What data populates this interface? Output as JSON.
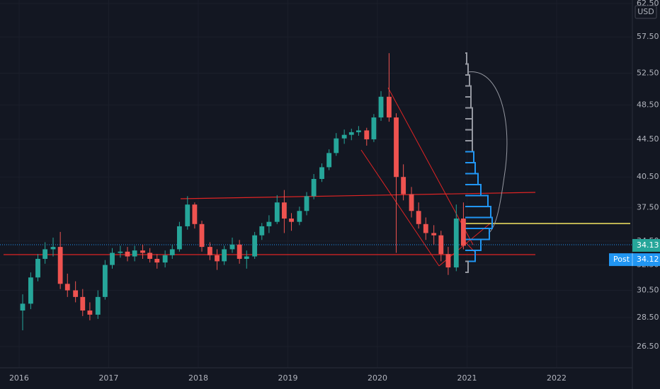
{
  "chart_data": {
    "type": "candlestick",
    "currency": "USD",
    "log_scale": true,
    "grid": true,
    "up_color": "#26a69a",
    "down_color": "#ef5350",
    "xlim": [
      2015.787,
      2022.846
    ],
    "xticks": [
      2016,
      2017,
      2018,
      2019,
      2020,
      2021,
      2022
    ],
    "ylim": [
      25.13,
      63.05
    ],
    "yticks": [
      {
        "value": 26.5,
        "label": "26.50"
      },
      {
        "value": 28.5,
        "label": "28.50"
      },
      {
        "value": 30.5,
        "label": "30.50"
      },
      {
        "value": 32.5,
        "label": "32.50"
      },
      {
        "value": 34.5,
        "label": "34.50"
      },
      {
        "value": 37.5,
        "label": "37.50"
      },
      {
        "value": 40.5,
        "label": "40.50"
      },
      {
        "value": 44.5,
        "label": "44.50"
      },
      {
        "value": 48.5,
        "label": "48.50"
      },
      {
        "value": 52.5,
        "label": "52.50"
      },
      {
        "value": 57.5,
        "label": "57.50"
      },
      {
        "value": 62.5,
        "label": "62.50"
      }
    ],
    "x": [
      2016.04,
      2016.13,
      2016.21,
      2016.29,
      2016.38,
      2016.46,
      2016.54,
      2016.63,
      2016.71,
      2016.79,
      2016.88,
      2016.96,
      2017.04,
      2017.13,
      2017.21,
      2017.29,
      2017.38,
      2017.46,
      2017.54,
      2017.63,
      2017.71,
      2017.79,
      2017.88,
      2017.96,
      2018.04,
      2018.13,
      2018.21,
      2018.29,
      2018.38,
      2018.46,
      2018.54,
      2018.63,
      2018.71,
      2018.79,
      2018.88,
      2018.96,
      2019.04,
      2019.13,
      2019.21,
      2019.29,
      2019.38,
      2019.46,
      2019.54,
      2019.63,
      2019.71,
      2019.79,
      2019.88,
      2019.96,
      2020.04,
      2020.13,
      2020.21,
      2020.29,
      2020.38,
      2020.46,
      2020.54,
      2020.63,
      2020.71,
      2020.79,
      2020.88,
      2020.96
    ],
    "open": [
      29.0,
      29.5,
      31.5,
      33.0,
      33.8,
      34.0,
      31.0,
      30.5,
      30.0,
      29.0,
      28.7,
      30.0,
      32.5,
      33.5,
      33.6,
      33.2,
      33.7,
      33.5,
      33.0,
      32.7,
      33.3,
      33.8,
      35.8,
      37.8,
      36.0,
      34.0,
      33.3,
      32.8,
      33.8,
      34.2,
      33.0,
      33.2,
      35.0,
      35.8,
      36.2,
      38.0,
      36.5,
      36.2,
      37.2,
      38.6,
      40.3,
      41.5,
      43.0,
      44.6,
      45.0,
      45.3,
      45.5,
      44.5,
      47.0,
      49.5,
      47.0,
      40.5,
      38.8,
      37.2,
      36.0,
      35.2,
      35.0,
      33.4,
      32.3,
      36.5
    ],
    "high": [
      30.2,
      31.9,
      33.4,
      34.4,
      34.8,
      35.3,
      31.8,
      31.2,
      30.6,
      29.6,
      30.5,
      32.9,
      33.9,
      34.1,
      34.0,
      34.1,
      34.2,
      33.9,
      33.4,
      33.7,
      34.2,
      36.2,
      38.6,
      38.0,
      36.3,
      34.4,
      33.8,
      34.1,
      34.8,
      34.6,
      33.7,
      35.3,
      36.1,
      36.8,
      38.7,
      39.2,
      37.0,
      37.6,
      39.0,
      40.8,
      41.9,
      43.4,
      45.2,
      45.6,
      45.7,
      46.0,
      45.8,
      47.4,
      50.2,
      55.2,
      47.5,
      41.8,
      39.5,
      38.0,
      36.6,
      35.9,
      35.4,
      34.0,
      37.8,
      38.0
    ],
    "low": [
      27.6,
      29.1,
      31.2,
      32.6,
      33.2,
      30.6,
      30.0,
      29.6,
      28.6,
      28.3,
      28.4,
      29.8,
      32.2,
      33.1,
      32.8,
      32.8,
      33.0,
      32.7,
      32.2,
      32.3,
      33.0,
      33.6,
      35.5,
      35.6,
      33.6,
      32.9,
      32.1,
      32.5,
      33.5,
      32.6,
      32.2,
      33.0,
      34.6,
      35.2,
      36.0,
      35.2,
      35.4,
      35.9,
      36.8,
      38.3,
      40.0,
      41.2,
      42.7,
      44.0,
      44.4,
      44.9,
      43.8,
      44.2,
      46.6,
      46.5,
      33.5,
      38.2,
      36.6,
      35.6,
      34.6,
      34.2,
      32.8,
      31.7,
      32.0,
      33.8
    ],
    "close": [
      29.5,
      31.5,
      33.0,
      33.8,
      34.0,
      31.0,
      30.5,
      30.0,
      29.0,
      28.7,
      30.0,
      32.5,
      33.5,
      33.6,
      33.2,
      33.7,
      33.5,
      33.0,
      32.7,
      33.3,
      33.8,
      35.8,
      37.8,
      36.0,
      34.0,
      33.3,
      32.8,
      33.8,
      34.2,
      33.0,
      33.2,
      35.0,
      35.8,
      36.2,
      38.0,
      36.5,
      36.2,
      37.2,
      38.6,
      40.3,
      41.5,
      43.0,
      44.6,
      45.0,
      45.3,
      45.5,
      44.5,
      47.0,
      49.5,
      47.0,
      40.5,
      38.8,
      37.2,
      36.0,
      35.2,
      35.0,
      33.4,
      32.3,
      36.5,
      34.1
    ],
    "price_labels": [
      {
        "value": 34.13,
        "label": "34.13",
        "color": "#26a69a"
      },
      {
        "value": 34.12,
        "label": "34.12",
        "name": "Post",
        "color": "#2196f3"
      }
    ]
  }
}
